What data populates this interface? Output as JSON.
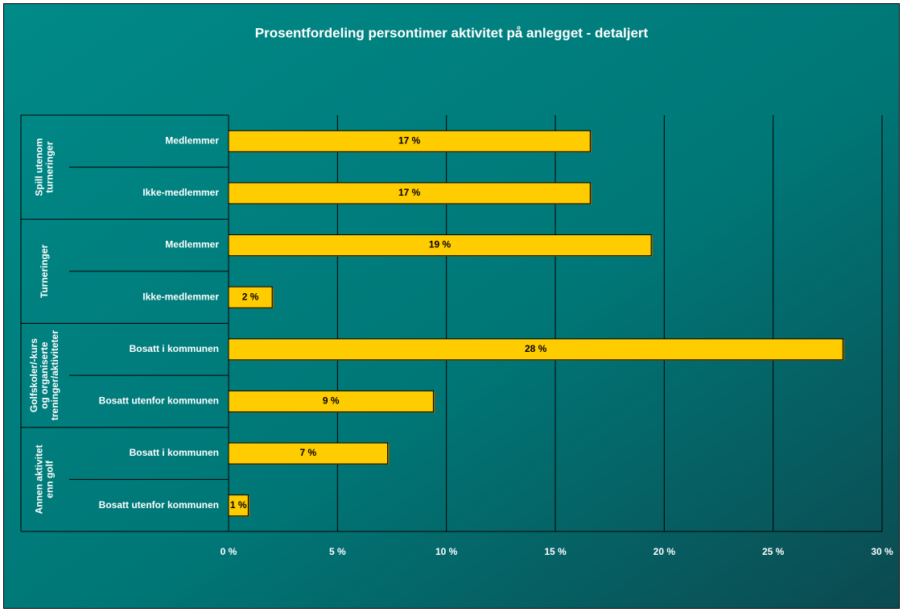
{
  "chart_data": {
    "type": "bar",
    "orientation": "horizontal",
    "title": "Prosentfordeling persontimer aktivitet på anlegget - detaljert",
    "category_groups": [
      "Spill utenom turneringer",
      "Turneringer",
      "Golfskoler/-kurs og organiserte treninger/aktiviteter",
      "Annen aktivitet enn golf"
    ],
    "categories": [
      "Medlemmer",
      "Ikke-medlemmer",
      "Medlemmer",
      "Ikke-medlemmer",
      "Bosatt i kommunen",
      "Bosatt utenfor kommunen",
      "Bosatt i kommunen",
      "Bosatt utenfor kommunen"
    ],
    "values": [
      16.6,
      16.6,
      19.4,
      2.0,
      28.2,
      9.4,
      7.3,
      0.9
    ],
    "value_labels": [
      "17 %",
      "17 %",
      "19 %",
      "2 %",
      "28 %",
      "9 %",
      "7 %",
      "1 %"
    ],
    "color": "#ffcc00",
    "xlim": [
      0,
      30
    ],
    "xticks": [
      {
        "value": 0,
        "label": "0 %"
      },
      {
        "value": 5,
        "label": "5 %"
      },
      {
        "value": 10,
        "label": "10 %"
      },
      {
        "value": 15,
        "label": "15 %"
      },
      {
        "value": 20,
        "label": "20 %"
      },
      {
        "value": 25,
        "label": "25 %"
      },
      {
        "value": 30,
        "label": "30 %"
      }
    ],
    "grid": true
  }
}
